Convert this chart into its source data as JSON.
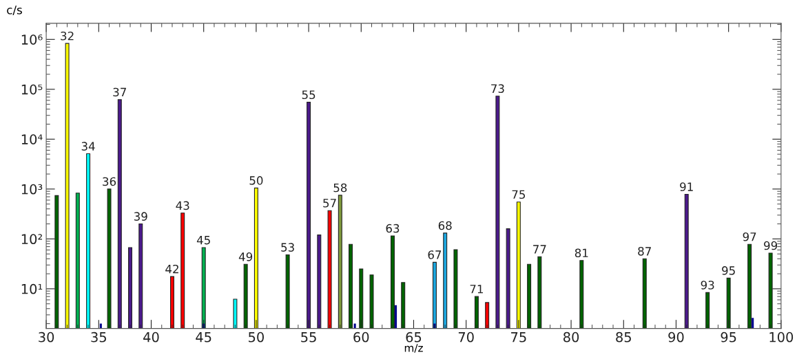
{
  "chart_data": {
    "type": "bar",
    "ylabel": "c/s",
    "xlabel": "m/z",
    "log": "y",
    "xlim": [
      30,
      100
    ],
    "xticks": [
      30,
      35,
      40,
      45,
      50,
      55,
      60,
      65,
      70,
      75,
      80,
      85,
      90,
      95,
      100
    ],
    "ylim": [
      1.6,
      2100000
    ],
    "yticks": [
      {
        "value": 10,
        "label": "10¹"
      },
      {
        "value": 100,
        "label": "10²"
      },
      {
        "value": 1000,
        "label": "10³"
      },
      {
        "value": 10000,
        "label": "10⁴"
      },
      {
        "value": 100000,
        "label": "10⁵"
      },
      {
        "value": 1000000,
        "label": "10⁶"
      }
    ],
    "grid": false,
    "series": [
      {
        "x": [
          31,
          32,
          33,
          34,
          36,
          37,
          38,
          39,
          42,
          43,
          45,
          48,
          49,
          50,
          53,
          55,
          56,
          57,
          58,
          59,
          60,
          61,
          63,
          64,
          67,
          68,
          69,
          71,
          72,
          73,
          74,
          75,
          76,
          77,
          81,
          87,
          91,
          93,
          95,
          97,
          99
        ],
        "values": [
          740,
          830000,
          830,
          5100,
          1000,
          62000,
          67,
          200,
          17.6,
          330,
          67,
          6.2,
          31,
          1050,
          48,
          55000,
          120,
          370,
          750,
          78,
          25,
          19,
          115,
          13.4,
          34,
          131,
          61,
          7,
          5.3,
          73000,
          160,
          550,
          31,
          44,
          37,
          40,
          785,
          8.4,
          16.4,
          78,
          52
        ],
        "colors": [
          "#006400",
          "#ffff00",
          "#00b050",
          "#00ffff",
          "#006400",
          "#4b1a8c",
          "#4b1a8c",
          "#4b1a8c",
          "#ff0000",
          "#ff0000",
          "#00b050",
          "#00ffff",
          "#006400",
          "#ffff00",
          "#006400",
          "#4b1a8c",
          "#4b1a8c",
          "#ff0000",
          "#7f9a3c",
          "#006400",
          "#006400",
          "#006400",
          "#006400",
          "#006400",
          "#1ca7e0",
          "#1ca7e0",
          "#006400",
          "#006400",
          "#ff0000",
          "#4b1a8c",
          "#4b1a8c",
          "#ffff00",
          "#006400",
          "#006400",
          "#006400",
          "#006400",
          "#4b1a8c",
          "#006400",
          "#006400",
          "#006400",
          "#006400"
        ]
      },
      {
        "x": [
          35.2,
          45,
          59.4,
          63.3,
          67,
          97.3
        ],
        "values": [
          2,
          2,
          2,
          4.7,
          2,
          2.6
        ],
        "color": "#00008b"
      }
    ],
    "annotations": [
      {
        "text": "32",
        "x": 32,
        "y": 830000
      },
      {
        "text": "34",
        "x": 34,
        "y": 5100
      },
      {
        "text": "36",
        "x": 36,
        "y": 1000
      },
      {
        "text": "37",
        "x": 37,
        "y": 62000
      },
      {
        "text": "39",
        "x": 39,
        "y": 200
      },
      {
        "text": "42",
        "x": 42,
        "y": 17.6
      },
      {
        "text": "43",
        "x": 43,
        "y": 330
      },
      {
        "text": "45",
        "x": 45,
        "y": 67
      },
      {
        "text": "49",
        "x": 49,
        "y": 31
      },
      {
        "text": "50",
        "x": 50,
        "y": 1050
      },
      {
        "text": "53",
        "x": 53,
        "y": 48
      },
      {
        "text": "55",
        "x": 55,
        "y": 55000
      },
      {
        "text": "57",
        "x": 57,
        "y": 370
      },
      {
        "text": "58",
        "x": 58,
        "y": 750
      },
      {
        "text": "63",
        "x": 63,
        "y": 115
      },
      {
        "text": "67",
        "x": 67,
        "y": 34
      },
      {
        "text": "68",
        "x": 68,
        "y": 131
      },
      {
        "text": "71",
        "x": 71,
        "y": 7
      },
      {
        "text": "73",
        "x": 73,
        "y": 73000
      },
      {
        "text": "75",
        "x": 75,
        "y": 550
      },
      {
        "text": "77",
        "x": 77,
        "y": 44
      },
      {
        "text": "81",
        "x": 81,
        "y": 37
      },
      {
        "text": "87",
        "x": 87,
        "y": 40
      },
      {
        "text": "91",
        "x": 91,
        "y": 785
      },
      {
        "text": "93",
        "x": 93,
        "y": 8.4
      },
      {
        "text": "95",
        "x": 95,
        "y": 16.4
      },
      {
        "text": "97",
        "x": 97,
        "y": 78
      },
      {
        "text": "99",
        "x": 99,
        "y": 52
      }
    ]
  }
}
